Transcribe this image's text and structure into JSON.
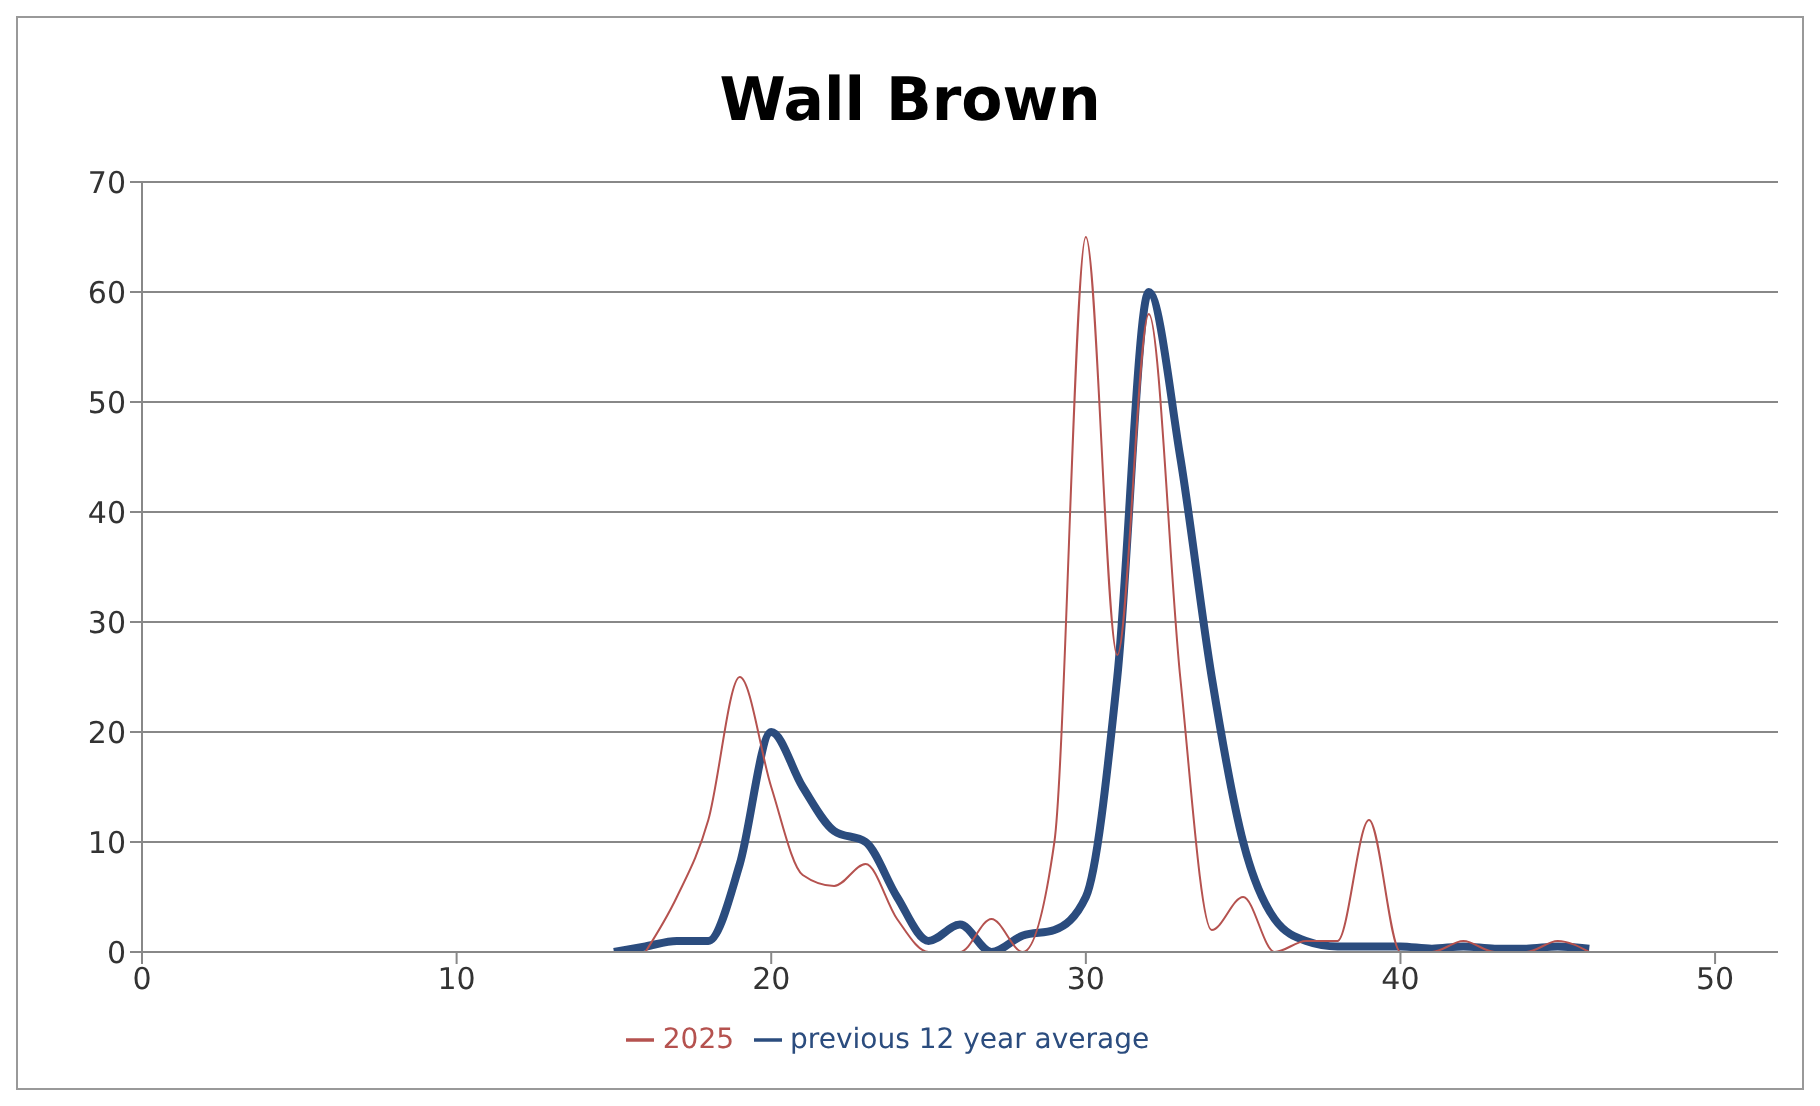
{
  "chart_data": {
    "type": "line",
    "title": "Wall Brown",
    "xlim": [
      0,
      52
    ],
    "xticks": [
      0,
      10,
      20,
      30,
      40,
      50
    ],
    "ylim": [
      0,
      70
    ],
    "yticks": [
      0,
      10,
      20,
      30,
      40,
      50,
      60,
      70
    ],
    "grid": "y",
    "legend": "bottom",
    "marker": "none",
    "series": [
      {
        "name": "previous 12 year average",
        "color": "#2b4c7e",
        "x": [
          15,
          16,
          17,
          18,
          19,
          20,
          21,
          22,
          23,
          24,
          25,
          26,
          27,
          28,
          29,
          30,
          31,
          32,
          33,
          34,
          35,
          36,
          37,
          38,
          39,
          40,
          41,
          42,
          43,
          44,
          45,
          46
        ],
        "values": [
          0,
          0.5,
          1,
          1,
          8,
          20,
          15,
          11,
          10,
          5,
          1,
          2.5,
          0,
          1.5,
          2,
          5,
          25,
          60,
          45,
          25,
          10,
          3,
          1,
          0.5,
          0.5,
          0.5,
          0.3,
          0.5,
          0.3,
          0.3,
          0.5,
          0.3
        ]
      },
      {
        "name": "2025",
        "color": "#b5524f",
        "x": [
          16,
          17,
          18,
          19,
          20,
          21,
          22,
          23,
          24,
          25,
          26,
          27,
          28,
          29,
          30,
          31,
          32,
          33,
          34,
          35,
          36,
          37,
          38,
          39,
          40,
          41,
          42,
          43,
          44,
          45,
          46
        ],
        "values": [
          0,
          5,
          12,
          25,
          15,
          7,
          6,
          8,
          3,
          0,
          0,
          3,
          0,
          10,
          65,
          27,
          58,
          25,
          2,
          5,
          0,
          1,
          1,
          12,
          0,
          0,
          1,
          0,
          0,
          1,
          0
        ]
      }
    ]
  }
}
